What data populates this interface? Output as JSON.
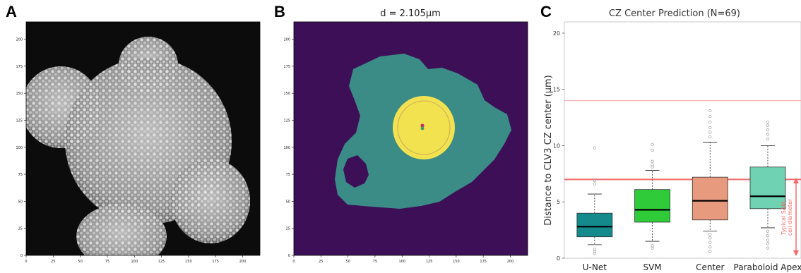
{
  "panels": {
    "a": {
      "letter": "A",
      "x_ticks": [
        "0",
        "25",
        "50",
        "75",
        "100",
        "125",
        "150",
        "175",
        "200"
      ],
      "y_ticks": [
        "0",
        "25",
        "50",
        "75",
        "100",
        "125",
        "150",
        "175",
        "200"
      ]
    },
    "b": {
      "letter": "B",
      "title": "d = 2.105μm",
      "x_ticks": [
        "0",
        "25",
        "50",
        "75",
        "100",
        "125",
        "150",
        "175",
        "200"
      ],
      "y_ticks": [
        "0",
        "25",
        "50",
        "75",
        "100",
        "125",
        "150",
        "175",
        "200"
      ],
      "colors": {
        "background": "#3d0f56",
        "tissue": "#3b8b87",
        "cz": "#f3e250"
      }
    },
    "c": {
      "letter": "C",
      "annotation": "Typical SAM\ncell diameter"
    }
  },
  "chart_data": {
    "type": "box",
    "title": "CZ Center Prediction (N=69)",
    "xlabel": "",
    "ylabel": "Distance to CLV3 CZ center (μm)",
    "ylim": [
      0,
      21
    ],
    "yticks": [
      0,
      5,
      10,
      15,
      20
    ],
    "categories": [
      "U-Net",
      "SVM",
      "Center",
      "Paraboloid Apex"
    ],
    "colors": [
      "#158a8c",
      "#2fcb39",
      "#e79a7d",
      "#6fd3b3"
    ],
    "boxes": [
      {
        "q1": 1.9,
        "median": 2.8,
        "q3": 4.0,
        "whisker_low": 1.2,
        "whisker_high": 5.7,
        "outliers": [
          0.4,
          0.6,
          0.8,
          6.6,
          6.9,
          9.8
        ]
      },
      {
        "q1": 3.2,
        "median": 4.3,
        "q3": 6.1,
        "whisker_low": 1.5,
        "whisker_high": 7.8,
        "outliers": [
          0.9,
          1.1,
          8.1,
          8.3,
          8.6,
          9.6,
          10.1
        ]
      },
      {
        "q1": 3.4,
        "median": 5.1,
        "q3": 7.2,
        "whisker_low": 2.4,
        "whisker_high": 10.3,
        "outliers": [
          0.6,
          1.0,
          1.4,
          1.8,
          2.1,
          10.8,
          11.2,
          11.6,
          12.1,
          12.6,
          13.1
        ]
      },
      {
        "q1": 4.4,
        "median": 5.5,
        "q3": 8.1,
        "whisker_low": 2.7,
        "whisker_high": 10.0,
        "outliers": [
          0.9,
          1.3,
          1.6,
          2.0,
          2.4,
          10.6,
          11.0,
          11.4,
          11.8,
          12.1
        ]
      }
    ],
    "reference_lines": [
      {
        "y": 7.0,
        "color": "#f26b6b",
        "width": 2
      },
      {
        "y": 14.0,
        "color": "#f7a8a8",
        "width": 1
      }
    ]
  }
}
